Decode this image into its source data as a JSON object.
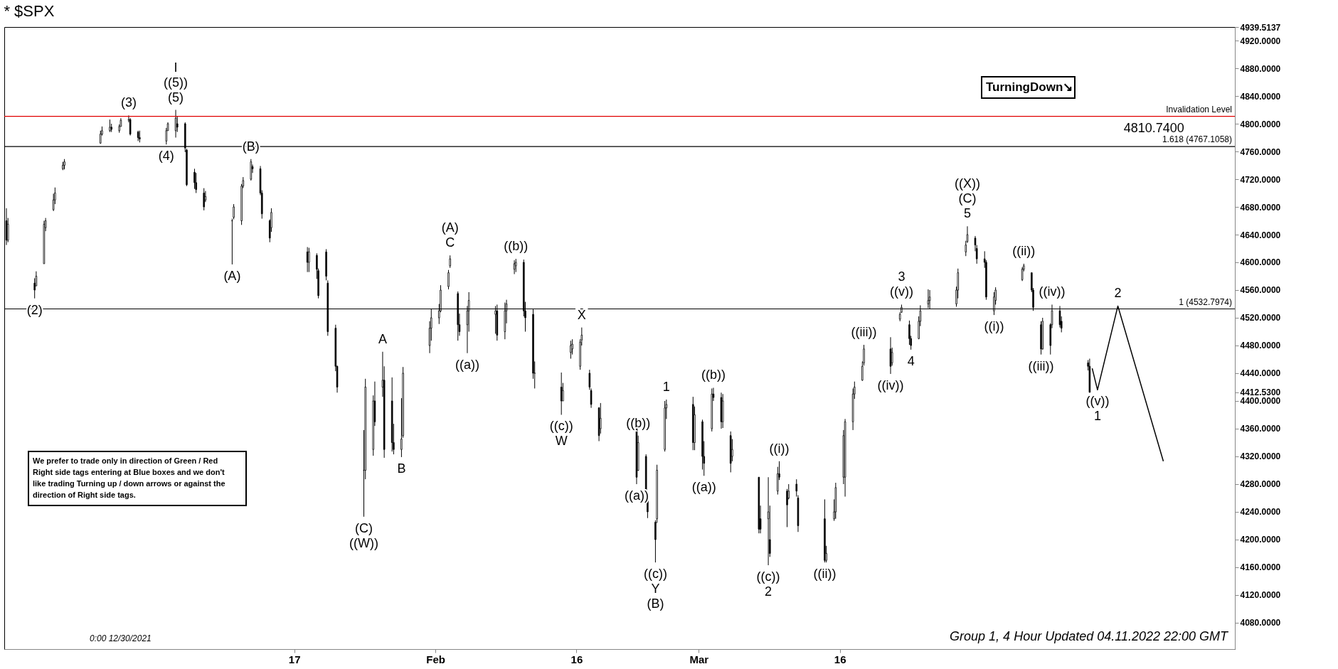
{
  "chart_data": {
    "type": "candlestick",
    "title": "* $SPX",
    "color": "#000000",
    "x": [
      "2021-12-17T09:30",
      "2021-12-17T13:30",
      "2021-12-20T09:30",
      "2021-12-20T13:30",
      "2021-12-21T09:30",
      "2021-12-21T13:30",
      "2021-12-22T09:30",
      "2021-12-22T13:30",
      "2021-12-23T09:30",
      "2021-12-23T13:30",
      "2021-12-27T09:30",
      "2021-12-27T13:30",
      "2021-12-28T09:30",
      "2021-12-28T13:30",
      "2021-12-29T09:30",
      "2021-12-29T13:30",
      "2021-12-30T09:30",
      "2021-12-30T13:30",
      "2021-12-31T09:30",
      "2021-12-31T13:30",
      "2022-01-03T09:30",
      "2022-01-03T13:30",
      "2022-01-04T09:30",
      "2022-01-04T13:30",
      "2022-01-05T09:30",
      "2022-01-05T13:30",
      "2022-01-06T09:30",
      "2022-01-06T13:30",
      "2022-01-07T09:30",
      "2022-01-07T13:30",
      "2022-01-10T09:30",
      "2022-01-10T13:30",
      "2022-01-11T09:30",
      "2022-01-11T13:30",
      "2022-01-12T09:30",
      "2022-01-12T13:30",
      "2022-01-13T09:30",
      "2022-01-13T13:30",
      "2022-01-14T09:30",
      "2022-01-14T13:30",
      "2022-01-18T09:30",
      "2022-01-18T13:30",
      "2022-01-19T09:30",
      "2022-01-19T13:30",
      "2022-01-20T09:30",
      "2022-01-20T13:30",
      "2022-01-21T09:30",
      "2022-01-21T13:30",
      "2022-01-24T09:30",
      "2022-01-24T13:30",
      "2022-01-25T09:30",
      "2022-01-25T13:30",
      "2022-01-26T09:30",
      "2022-01-26T13:30",
      "2022-01-27T09:30",
      "2022-01-27T13:30",
      "2022-01-28T09:30",
      "2022-01-28T13:30",
      "2022-01-31T09:30",
      "2022-01-31T13:30",
      "2022-02-01T09:30",
      "2022-02-01T13:30",
      "2022-02-02T09:30",
      "2022-02-02T13:30",
      "2022-02-03T09:30",
      "2022-02-03T13:30",
      "2022-02-04T09:30",
      "2022-02-04T13:30",
      "2022-02-07T09:30",
      "2022-02-07T13:30",
      "2022-02-08T09:30",
      "2022-02-08T13:30",
      "2022-02-09T09:30",
      "2022-02-09T13:30",
      "2022-02-10T09:30",
      "2022-02-10T13:30",
      "2022-02-11T09:30",
      "2022-02-11T13:30",
      "2022-02-14T09:30",
      "2022-02-14T13:30",
      "2022-02-15T09:30",
      "2022-02-15T13:30",
      "2022-02-16T09:30",
      "2022-02-16T13:30",
      "2022-02-17T09:30",
      "2022-02-17T13:30",
      "2022-02-18T09:30",
      "2022-02-18T13:30",
      "2022-02-22T09:30",
      "2022-02-22T13:30",
      "2022-02-23T09:30",
      "2022-02-23T13:30",
      "2022-02-24T09:30",
      "2022-02-24T13:30",
      "2022-02-25T09:30",
      "2022-02-25T13:30",
      "2022-02-28T09:30",
      "2022-02-28T13:30",
      "2022-03-01T09:30",
      "2022-03-01T13:30",
      "2022-03-02T09:30",
      "2022-03-02T13:30",
      "2022-03-03T09:30",
      "2022-03-03T13:30",
      "2022-03-04T09:30",
      "2022-03-04T13:30",
      "2022-03-07T09:30",
      "2022-03-07T13:30",
      "2022-03-08T09:30",
      "2022-03-08T13:30",
      "2022-03-09T09:30",
      "2022-03-09T13:30",
      "2022-03-10T09:30",
      "2022-03-10T13:30",
      "2022-03-11T09:30",
      "2022-03-11T13:30",
      "2022-03-14T09:30",
      "2022-03-14T13:30",
      "2022-03-15T09:30",
      "2022-03-15T13:30",
      "2022-03-16T09:30",
      "2022-03-16T13:30",
      "2022-03-17T09:30",
      "2022-03-17T13:30",
      "2022-03-18T09:30",
      "2022-03-18T13:30",
      "2022-03-21T09:30",
      "2022-03-21T13:30",
      "2022-03-22T09:30",
      "2022-03-22T13:30",
      "2022-03-23T09:30",
      "2022-03-23T13:30",
      "2022-03-24T09:30",
      "2022-03-24T13:30",
      "2022-03-25T09:30",
      "2022-03-25T13:30",
      "2022-03-28T09:30",
      "2022-03-28T13:30",
      "2022-03-29T09:30",
      "2022-03-29T13:30",
      "2022-03-30T09:30",
      "2022-03-30T13:30",
      "2022-03-31T09:30",
      "2022-03-31T13:30",
      "2022-04-01T09:30",
      "2022-04-01T13:30",
      "2022-04-04T09:30",
      "2022-04-04T13:30",
      "2022-04-05T09:30",
      "2022-04-05T13:30",
      "2022-04-06T09:30",
      "2022-04-06T13:30",
      "2022-04-07T09:30",
      "2022-04-07T13:30",
      "2022-04-08T09:30",
      "2022-04-08T13:30",
      "2022-04-11T09:30",
      "2022-04-11T13:30"
    ],
    "ohlc": [
      [
        4660,
        4678,
        4625,
        4632
      ],
      [
        4632,
        4664,
        4629,
        4655
      ],
      [
        4570,
        4577,
        4548,
        4560
      ],
      [
        4566,
        4587,
        4566,
        4580
      ],
      [
        4598,
        4660,
        4598,
        4655
      ],
      [
        4650,
        4664,
        4645,
        4660
      ],
      [
        4676,
        4699,
        4674,
        4690
      ],
      [
        4690,
        4708,
        4684,
        4700
      ],
      [
        4735,
        4745,
        4733,
        4740
      ],
      [
        4740,
        4749,
        4734,
        4745
      ],
      [
        4772,
        4790,
        4771,
        4785
      ],
      [
        4785,
        4796,
        4783,
        4790
      ],
      [
        4790,
        4806,
        4788,
        4795
      ],
      [
        4795,
        4800,
        4788,
        4792
      ],
      [
        4790,
        4799,
        4787,
        4796
      ],
      [
        4796,
        4808,
        4796,
        4805
      ],
      [
        4805,
        4812,
        4802,
        4806
      ],
      [
        4806,
        4808,
        4783,
        4785
      ],
      [
        4788,
        4790,
        4775,
        4780
      ],
      [
        4780,
        4790,
        4773,
        4778
      ],
      [
        4775,
        4794,
        4770,
        4790
      ],
      [
        4790,
        4802,
        4790,
        4800
      ],
      [
        4790,
        4820,
        4780,
        4808
      ],
      [
        4800,
        4811,
        4788,
        4795
      ],
      [
        4800,
        4802,
        4759,
        4765
      ],
      [
        4762,
        4764,
        4710,
        4712
      ],
      [
        4730,
        4735,
        4706,
        4715
      ],
      [
        4715,
        4729,
        4700,
        4705
      ],
      [
        4700,
        4707,
        4675,
        4680
      ],
      [
        4690,
        4703,
        4687,
        4695
      ],
      [
        4660,
        4663,
        4597,
        4660
      ],
      [
        4665,
        4684,
        4662,
        4680
      ],
      [
        4660,
        4713,
        4654,
        4710
      ],
      [
        4710,
        4723,
        4707,
        4718
      ],
      [
        4720,
        4749,
        4718,
        4745
      ],
      [
        4738,
        4741,
        4729,
        4735
      ],
      [
        4735,
        4739,
        4697,
        4700
      ],
      [
        4700,
        4704,
        4663,
        4670
      ],
      [
        4660,
        4662,
        4629,
        4635
      ],
      [
        4650,
        4678,
        4644,
        4672
      ],
      [
        4615,
        4622,
        4586,
        4600
      ],
      [
        4600,
        4621,
        4586,
        4615
      ],
      [
        4610,
        4613,
        4576,
        4590
      ],
      [
        4588,
        4591,
        4548,
        4552
      ],
      [
        4615,
        4619,
        4574,
        4580
      ],
      [
        4570,
        4574,
        4494,
        4500
      ],
      [
        4505,
        4510,
        4443,
        4450
      ],
      [
        4450,
        4451,
        4412,
        4420
      ],
      [
        4300,
        4358,
        4233,
        4300
      ],
      [
        4300,
        4432,
        4287,
        4420
      ],
      [
        4330,
        4408,
        4321,
        4400
      ],
      [
        4400,
        4428,
        4364,
        4370
      ],
      [
        4420,
        4471,
        4406,
        4430
      ],
      [
        4430,
        4450,
        4318,
        4330
      ],
      [
        4400,
        4434,
        4327,
        4340
      ],
      [
        4340,
        4367,
        4323,
        4330
      ],
      [
        4330,
        4404,
        4319,
        4345
      ],
      [
        4350,
        4449,
        4347,
        4440
      ],
      [
        4480,
        4515,
        4469,
        4505
      ],
      [
        4505,
        4533,
        4487,
        4520
      ],
      [
        4520,
        4540,
        4511,
        4530
      ],
      [
        4530,
        4567,
        4528,
        4560
      ],
      [
        4565,
        4589,
        4561,
        4585
      ],
      [
        4595,
        4610,
        4592,
        4605
      ],
      [
        4555,
        4558,
        4487,
        4510
      ],
      [
        4510,
        4526,
        4494,
        4500
      ],
      [
        4510,
        4537,
        4469,
        4530
      ],
      [
        4530,
        4557,
        4500,
        4545
      ],
      [
        4525,
        4537,
        4497,
        4530
      ],
      [
        4530,
        4539,
        4487,
        4495
      ],
      [
        4500,
        4542,
        4489,
        4530
      ],
      [
        4530,
        4546,
        4512,
        4540
      ],
      [
        4590,
        4603,
        4583,
        4598
      ],
      [
        4595,
        4605,
        4586,
        4600
      ],
      [
        4600,
        4604,
        4522,
        4530
      ],
      [
        4530,
        4543,
        4500,
        4520
      ],
      [
        4525,
        4533,
        4432,
        4440
      ],
      [
        4440,
        4457,
        4418,
        4440
      ],
      [
        4420,
        4441,
        4380,
        4400
      ],
      [
        4400,
        4426,
        4400,
        4415
      ],
      [
        4470,
        4487,
        4461,
        4480
      ],
      [
        4475,
        4489,
        4467,
        4482
      ],
      [
        4450,
        4489,
        4445,
        4485
      ],
      [
        4488,
        4506,
        4480,
        4495
      ],
      [
        4440,
        4445,
        4416,
        4420
      ],
      [
        4415,
        4418,
        4390,
        4395
      ],
      [
        4390,
        4391,
        4342,
        4350
      ],
      [
        4360,
        4397,
        4353,
        4375
      ],
      [
        4370,
        4376,
        4280,
        4290
      ],
      [
        4300,
        4350,
        4299,
        4340
      ],
      [
        4320,
        4323,
        4262,
        4270
      ],
      [
        4265,
        4267,
        4231,
        4240
      ],
      [
        4225,
        4228,
        4167,
        4200
      ],
      [
        4230,
        4308,
        4224,
        4300
      ],
      [
        4330,
        4400,
        4327,
        4390
      ],
      [
        4390,
        4402,
        4374,
        4395
      ],
      [
        4395,
        4406,
        4329,
        4340
      ],
      [
        4340,
        4392,
        4329,
        4380
      ],
      [
        4370,
        4373,
        4301,
        4320
      ],
      [
        4320,
        4342,
        4292,
        4310
      ],
      [
        4360,
        4418,
        4356,
        4410
      ],
      [
        4410,
        4419,
        4400,
        4405
      ],
      [
        4405,
        4412,
        4360,
        4370
      ],
      [
        4370,
        4410,
        4361,
        4400
      ],
      [
        4350,
        4356,
        4297,
        4310
      ],
      [
        4320,
        4345,
        4313,
        4330
      ],
      [
        4290,
        4290,
        4209,
        4215
      ],
      [
        4230,
        4249,
        4209,
        4215
      ],
      [
        4230,
        4290,
        4163,
        4240
      ],
      [
        4200,
        4249,
        4175,
        4180
      ],
      [
        4270,
        4305,
        4265,
        4295
      ],
      [
        4295,
        4313,
        4286,
        4290
      ],
      [
        4270,
        4273,
        4218,
        4250
      ],
      [
        4260,
        4280,
        4258,
        4270
      ],
      [
        4280,
        4287,
        4262,
        4270
      ],
      [
        4260,
        4264,
        4211,
        4220
      ],
      [
        4230,
        4258,
        4167,
        4170
      ],
      [
        4170,
        4191,
        4167,
        4180
      ],
      [
        4230,
        4258,
        4227,
        4240
      ],
      [
        4240,
        4282,
        4230,
        4275
      ],
      [
        4290,
        4358,
        4280,
        4350
      ],
      [
        4290,
        4374,
        4262,
        4370
      ],
      [
        4370,
        4418,
        4358,
        4410
      ],
      [
        4410,
        4428,
        4403,
        4420
      ],
      [
        4430,
        4457,
        4429,
        4450
      ],
      [
        4455,
        4481,
        4451,
        4475
      ],
      [
        4475,
        4492,
        4439,
        4450
      ],
      [
        4455,
        4477,
        4451,
        4470
      ],
      [
        4518,
        4528,
        4515,
        4525
      ],
      [
        4528,
        4539,
        4527,
        4535
      ],
      [
        4510,
        4516,
        4481,
        4490
      ],
      [
        4490,
        4494,
        4474,
        4480
      ],
      [
        4490,
        4522,
        4489,
        4515
      ],
      [
        4515,
        4538,
        4508,
        4530
      ],
      [
        4540,
        4561,
        4534,
        4545
      ],
      [
        4545,
        4560,
        4533,
        4550
      ],
      [
        4540,
        4565,
        4536,
        4560
      ],
      [
        4560,
        4591,
        4548,
        4585
      ],
      [
        4615,
        4631,
        4609,
        4625
      ],
      [
        4630,
        4652,
        4628,
        4640
      ],
      [
        4635,
        4638,
        4616,
        4625
      ],
      [
        4620,
        4625,
        4598,
        4605
      ],
      [
        4605,
        4616,
        4592,
        4600
      ],
      [
        4600,
        4603,
        4546,
        4550
      ],
      [
        4530,
        4557,
        4524,
        4550
      ],
      [
        4545,
        4564,
        4539,
        4560
      ],
      [
        4575,
        4593,
        4573,
        4590
      ],
      [
        4590,
        4598,
        4587,
        4595
      ],
      [
        4585,
        4585,
        4557,
        4560
      ],
      [
        4560,
        4563,
        4530,
        4535
      ],
      [
        4510,
        4515,
        4467,
        4475
      ],
      [
        4475,
        4520,
        4474,
        4515
      ],
      [
        4510,
        4512,
        4467,
        4480
      ],
      [
        4510,
        4539,
        4505,
        4530
      ],
      [
        4530,
        4537,
        4506,
        4510
      ],
      [
        4515,
        4522,
        4499,
        4505
      ],
      [
        4455,
        4459,
        4444,
        4450
      ],
      [
        4450,
        4461,
        4412,
        4412.53
      ]
    ],
    "series": [
      {
        "type": "line",
        "color": "#000000",
        "x": [
          "2022-04-11T20:00",
          "2022-04-12T09:30",
          "2022-04-14T13:30",
          "2022-04-19T09:30"
        ],
        "values": [
          4447,
          4416,
          4537,
          4313
        ]
      }
    ],
    "xlim": [
      "2021-12-17T04:00",
      "2022-04-27T00:00"
    ],
    "xticks": [
      {
        "value": "2022-01-17T00:00",
        "label": "17"
      },
      {
        "value": "2022-02-01T00:00",
        "label": "Feb"
      },
      {
        "value": "2022-02-16T00:00",
        "label": "16"
      },
      {
        "value": "2022-03-01T00:00",
        "label": "Mar"
      },
      {
        "value": "2022-03-16T00:00",
        "label": "16"
      }
    ],
    "ylim": [
      4042,
      4939.5137
    ],
    "yticks": [
      {
        "value": 4080,
        "label": "4080.0000"
      },
      {
        "value": 4120,
        "label": "4120.0000"
      },
      {
        "value": 4160,
        "label": "4160.0000"
      },
      {
        "value": 4200,
        "label": "4200.0000"
      },
      {
        "value": 4240,
        "label": "4240.0000"
      },
      {
        "value": 4280,
        "label": "4280.0000"
      },
      {
        "value": 4320,
        "label": "4320.0000"
      },
      {
        "value": 4360,
        "label": "4360.0000"
      },
      {
        "value": 4400,
        "label": "4400.0000"
      },
      {
        "value": 4412.53,
        "label": "4412.5300"
      },
      {
        "value": 4440,
        "label": "4440.0000"
      },
      {
        "value": 4480,
        "label": "4480.0000"
      },
      {
        "value": 4520,
        "label": "4520.0000"
      },
      {
        "value": 4560,
        "label": "4560.0000"
      },
      {
        "value": 4600,
        "label": "4600.0000"
      },
      {
        "value": 4640,
        "label": "4640.0000"
      },
      {
        "value": 4680,
        "label": "4680.0000"
      },
      {
        "value": 4720,
        "label": "4720.0000"
      },
      {
        "value": 4760,
        "label": "4760.0000"
      },
      {
        "value": 4800,
        "label": "4800.0000"
      },
      {
        "value": 4840,
        "label": "4840.0000"
      },
      {
        "value": 4880,
        "label": "4880.0000"
      },
      {
        "value": 4920,
        "label": "4920.0000"
      },
      {
        "value": 4939.5137,
        "label": "4939.5137"
      }
    ],
    "ref_lines": [
      {
        "axis": "y",
        "value": 4810.74,
        "label": "Invalidation Level",
        "color": "#e00000"
      },
      {
        "axis": "y",
        "value": 4767.1058,
        "label": "1.618 (4767.1058)",
        "color": "#000000"
      },
      {
        "axis": "y",
        "value": 4532.7974,
        "label": "1 (4532.7974)",
        "color": "#000000"
      }
    ],
    "annotations": [
      "We prefer to trade only in direction of Green / Red Right side tags entering at Blue boxes and we don't like trading Turning up / down arrows or against the direction of Right side tags.",
      "0:00 12/30/2021",
      "Group 1, 4 Hour Updated 04.11.2022 22:00 GMT",
      "TurningDown↘",
      {
        "text": "(5)",
        "x": "2022-01-04T09:30",
        "y": 4820
      },
      {
        "text": "((5))",
        "x": "2022-01-04T09:30",
        "y": 4820
      },
      {
        "text": "I",
        "x": "2022-01-04T09:30",
        "y": 4820
      },
      {
        "text": "(2)",
        "x": "2021-12-20T09:30",
        "y": 4548
      },
      {
        "text": "(3)",
        "x": "2021-12-30T09:30",
        "y": 4812
      },
      {
        "text": "(4)",
        "x": "2022-01-03T09:30",
        "y": 4770
      },
      {
        "text": "(A)",
        "x": "2022-01-10T09:30",
        "y": 4597
      },
      {
        "text": "(B)",
        "x": "2022-01-12T09:30",
        "y": 4749
      },
      {
        "text": "(C)",
        "x": "2022-01-24T09:30",
        "y": 4233
      },
      {
        "text": "((W))",
        "x": "2022-01-24T09:30",
        "y": 4233
      },
      {
        "text": "A",
        "x": "2022-01-26T09:30",
        "y": 4471
      },
      {
        "text": "B",
        "x": "2022-01-28T09:30",
        "y": 4319
      },
      {
        "text": "C",
        "x": "2022-02-02T13:30",
        "y": 4610
      },
      {
        "text": "(A)",
        "x": "2022-02-02T13:30",
        "y": 4610
      },
      {
        "text": "((a))",
        "x": "2022-02-04T09:30",
        "y": 4469
      },
      {
        "text": "((b))",
        "x": "2022-02-09T13:30",
        "y": 4605
      },
      {
        "text": "((c))",
        "x": "2022-02-14T09:30",
        "y": 4380
      },
      {
        "text": "W",
        "x": "2022-02-14T09:30",
        "y": 4380
      },
      {
        "text": "X",
        "x": "2022-02-16T13:30",
        "y": 4506
      },
      {
        "text": "((a))",
        "x": "2022-02-22T09:30",
        "y": 4280
      },
      {
        "text": "((b))",
        "x": "2022-02-22T13:30",
        "y": 4350
      },
      {
        "text": "((c))",
        "x": "2022-02-24T09:30",
        "y": 4167
      },
      {
        "text": "Y",
        "x": "2022-02-24T09:30",
        "y": 4167
      },
      {
        "text": "(B)",
        "x": "2022-02-24T09:30",
        "y": 4167
      },
      {
        "text": "1",
        "x": "2022-02-25T13:30",
        "y": 4402
      },
      {
        "text": "((a))",
        "x": "2022-03-01T13:30",
        "y": 4292
      },
      {
        "text": "((b))",
        "x": "2022-03-02T13:30",
        "y": 4419
      },
      {
        "text": "((c))",
        "x": "2022-03-08T09:30",
        "y": 4163
      },
      {
        "text": "2",
        "x": "2022-03-08T09:30",
        "y": 4163
      },
      {
        "text": "((i))",
        "x": "2022-03-09T13:30",
        "y": 4313
      },
      {
        "text": "((ii))",
        "x": "2022-03-14T09:30",
        "y": 4167
      },
      {
        "text": "((iii))",
        "x": "2022-03-18T13:30",
        "y": 4481
      },
      {
        "text": "((iv))",
        "x": "2022-03-21T09:30",
        "y": 4439
      },
      {
        "text": "((v))",
        "x": "2022-03-22T13:30",
        "y": 4539
      },
      {
        "text": "3",
        "x": "2022-03-22T13:30",
        "y": 4539
      },
      {
        "text": "4",
        "x": "2022-03-23T13:30",
        "y": 4474
      },
      {
        "text": "5",
        "x": "2022-03-29T13:30",
        "y": 4652
      },
      {
        "text": "(C)",
        "x": "2022-03-29T13:30",
        "y": 4652
      },
      {
        "text": "((X))",
        "x": "2022-03-29T13:30",
        "y": 4652
      },
      {
        "text": "((i))",
        "x": "2022-04-01T09:30",
        "y": 4524
      },
      {
        "text": "((ii))",
        "x": "2022-04-04T13:30",
        "y": 4598
      },
      {
        "text": "((iii))",
        "x": "2022-04-06T09:30",
        "y": 4467
      },
      {
        "text": "((iv))",
        "x": "2022-04-07T13:30",
        "y": 4539
      },
      {
        "text": "((v))",
        "x": "2022-04-12T09:30",
        "y": 4416
      },
      {
        "text": "1",
        "x": "2022-04-12T09:30",
        "y": 4416
      },
      {
        "text": "2",
        "x": "2022-04-14T13:30",
        "y": 4537
      },
      {
        "text": "4810.7400",
        "x": "2022-04-18T09:30",
        "y": 4810.74
      }
    ]
  }
}
